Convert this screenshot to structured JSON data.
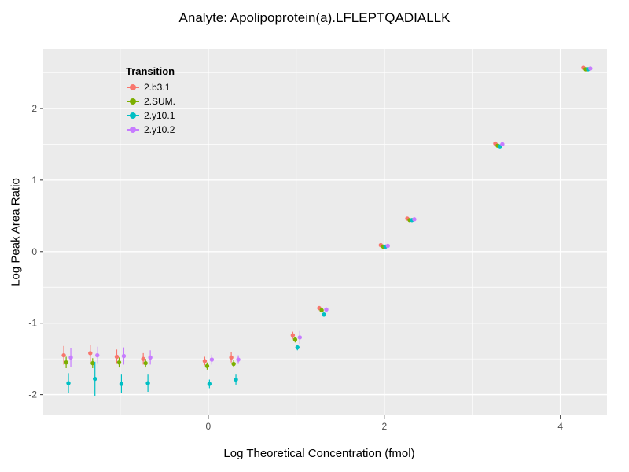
{
  "figure": {
    "background": "#FFFFFF",
    "panel_background": "#EBEBEB",
    "grid_major_color": "#FFFFFF",
    "grid_minor_color": "#FFFFFF",
    "tick_color": "#333333",
    "tick_label_color": "#4D4D4D",
    "text_color": "#000000"
  },
  "chart_data": {
    "type": "scatter",
    "title": "Analyte: Apolipoprotein(a).LFLEPTQADIALLK",
    "xlabel": "Log Theoretical Concentration (fmol)",
    "ylabel": "Log Peak Area Ratio",
    "xlim": [
      -1.875,
      4.53
    ],
    "ylim": [
      -2.29,
      2.835
    ],
    "x_ticks": [
      0,
      2,
      4
    ],
    "y_ticks": [
      -2,
      -1,
      0,
      1,
      2
    ],
    "x_minor_ticks": [
      -1,
      1,
      3
    ],
    "y_minor_ticks": [
      -1.5,
      -0.5,
      0.5,
      1.5,
      2.5
    ],
    "grid": true,
    "legend": {
      "title": "Transition",
      "position": "inside-top-left"
    },
    "x": [
      -1.602,
      -1.301,
      -1.0,
      -0.699,
      0.0,
      0.301,
      1.0,
      1.301,
      2.0,
      2.301,
      3.301,
      4.301
    ],
    "dodge": [
      -0.04,
      -0.013,
      0.013,
      0.04
    ],
    "series": [
      {
        "name": "2.b3.1",
        "color": "#F8766D",
        "y": [
          -1.45,
          -1.42,
          -1.47,
          -1.5,
          -1.53,
          -1.48,
          -1.17,
          -0.79,
          0.09,
          0.46,
          1.51,
          2.57
        ],
        "err": [
          0.13,
          0.12,
          0.1,
          0.08,
          0.06,
          0.07,
          0.05,
          0.03,
          0.02,
          0.02,
          0.02,
          0.02
        ]
      },
      {
        "name": "2.SUM.",
        "color": "#7CAE00",
        "y": [
          -1.55,
          -1.56,
          -1.55,
          -1.56,
          -1.6,
          -1.57,
          -1.23,
          -0.82,
          0.07,
          0.44,
          1.48,
          2.55
        ],
        "err": [
          0.08,
          0.07,
          0.07,
          0.06,
          0.05,
          0.05,
          0.04,
          0.03,
          0.02,
          0.02,
          0.02,
          0.02
        ]
      },
      {
        "name": "2.y10.1",
        "color": "#00BFC4",
        "y": [
          -1.84,
          -1.78,
          -1.85,
          -1.84,
          -1.85,
          -1.79,
          -1.34,
          -0.88,
          0.07,
          0.44,
          1.47,
          2.55
        ],
        "err": [
          0.14,
          0.24,
          0.13,
          0.12,
          0.06,
          0.07,
          0.04,
          0.03,
          0.02,
          0.02,
          0.02,
          0.02
        ]
      },
      {
        "name": "2.y10.2",
        "color": "#C77CFF",
        "y": [
          -1.48,
          -1.45,
          -1.46,
          -1.48,
          -1.51,
          -1.51,
          -1.2,
          -0.81,
          0.08,
          0.45,
          1.5,
          2.56
        ],
        "err": [
          0.13,
          0.12,
          0.12,
          0.1,
          0.07,
          0.06,
          0.09,
          0.03,
          0.02,
          0.02,
          0.02,
          0.02
        ]
      }
    ]
  }
}
